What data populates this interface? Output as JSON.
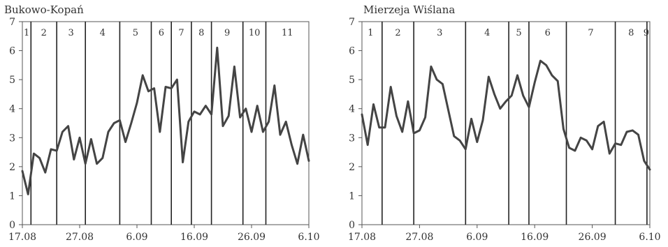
{
  "chart_data": [
    {
      "type": "line",
      "title": "Bukowo-Kopań",
      "xlabel": "",
      "ylabel": "",
      "ylim": [
        0,
        7
      ],
      "yticks": [
        0,
        1,
        2,
        3,
        4,
        5,
        6,
        7
      ],
      "xlim": [
        0,
        50
      ],
      "xticks": [
        {
          "x": 0,
          "label": "17.08"
        },
        {
          "x": 10,
          "label": "27.08"
        },
        {
          "x": 20,
          "label": "6.09"
        },
        {
          "x": 30,
          "label": "16.09"
        },
        {
          "x": 40,
          "label": "26.09"
        },
        {
          "x": 50,
          "label": "6.10"
        }
      ],
      "period_boundaries": [
        1.5,
        6,
        11,
        17,
        22.5,
        26,
        29.5,
        33,
        38.5,
        42.5
      ],
      "period_labels": [
        {
          "label": "1",
          "x": 0.75
        },
        {
          "label": "2",
          "x": 3.75
        },
        {
          "label": "3",
          "x": 8.5
        },
        {
          "label": "4",
          "x": 14
        },
        {
          "label": "5",
          "x": 19.75
        },
        {
          "label": "6",
          "x": 24.25
        },
        {
          "label": "7",
          "x": 27.75
        },
        {
          "label": "8",
          "x": 31.25
        },
        {
          "label": "9",
          "x": 35.75
        },
        {
          "label": "10",
          "x": 40.5
        },
        {
          "label": "11",
          "x": 46.25
        }
      ],
      "series": [
        {
          "values": [
            1.85,
            1.05,
            2.45,
            2.3,
            1.8,
            2.6,
            2.55,
            3.2,
            3.4,
            2.25,
            3.0,
            2.1,
            2.95,
            2.1,
            2.3,
            3.2,
            3.5,
            3.6,
            2.85,
            3.5,
            4.2,
            5.15,
            4.6,
            4.7,
            3.2,
            4.75,
            4.7,
            5.0,
            2.15,
            3.55,
            3.9,
            3.8,
            4.1,
            3.8,
            6.1,
            3.4,
            3.75,
            5.45,
            3.7,
            4.0,
            3.2,
            4.1,
            3.2,
            3.55,
            4.8,
            3.1,
            3.55,
            2.75,
            2.1,
            3.1,
            2.2
          ]
        }
      ]
    },
    {
      "type": "line",
      "title": "Mierzeja Wiślana",
      "xlabel": "",
      "ylabel": "",
      "ylim": [
        0,
        7
      ],
      "yticks": [
        0,
        1,
        2,
        3,
        4,
        5,
        6,
        7
      ],
      "xlim": [
        0,
        50
      ],
      "xticks": [
        {
          "x": 0,
          "label": "17.08"
        },
        {
          "x": 10,
          "label": "27.08"
        },
        {
          "x": 20,
          "label": "6.09"
        },
        {
          "x": 30,
          "label": "16.09"
        },
        {
          "x": 40,
          "label": "26.09"
        },
        {
          "x": 50,
          "label": "6.10"
        }
      ],
      "period_boundaries": [
        3.5,
        9,
        18,
        25.5,
        29,
        35.5,
        44,
        49.5
      ],
      "period_labels": [
        {
          "label": "1",
          "x": 1.5
        },
        {
          "label": "2",
          "x": 6.25
        },
        {
          "label": "3",
          "x": 13.5
        },
        {
          "label": "4",
          "x": 21.75
        },
        {
          "label": "5",
          "x": 27.25
        },
        {
          "label": "6",
          "x": 32.25
        },
        {
          "label": "7",
          "x": 39.75
        },
        {
          "label": "8",
          "x": 46.75
        },
        {
          "label": "9",
          "x": 49.9
        }
      ],
      "series": [
        {
          "values": [
            3.8,
            2.75,
            4.15,
            3.35,
            3.35,
            4.75,
            3.75,
            3.2,
            4.25,
            3.15,
            3.25,
            3.7,
            5.45,
            5.0,
            4.85,
            3.95,
            3.05,
            2.9,
            2.6,
            3.65,
            2.85,
            3.6,
            5.1,
            4.5,
            4.0,
            4.25,
            4.45,
            5.15,
            4.45,
            4.05,
            4.9,
            5.65,
            5.5,
            5.15,
            4.95,
            3.3,
            2.65,
            2.55,
            3.0,
            2.9,
            2.6,
            3.4,
            3.55,
            2.45,
            2.8,
            2.75,
            3.2,
            3.25,
            3.1,
            2.2,
            1.9
          ]
        }
      ]
    }
  ]
}
